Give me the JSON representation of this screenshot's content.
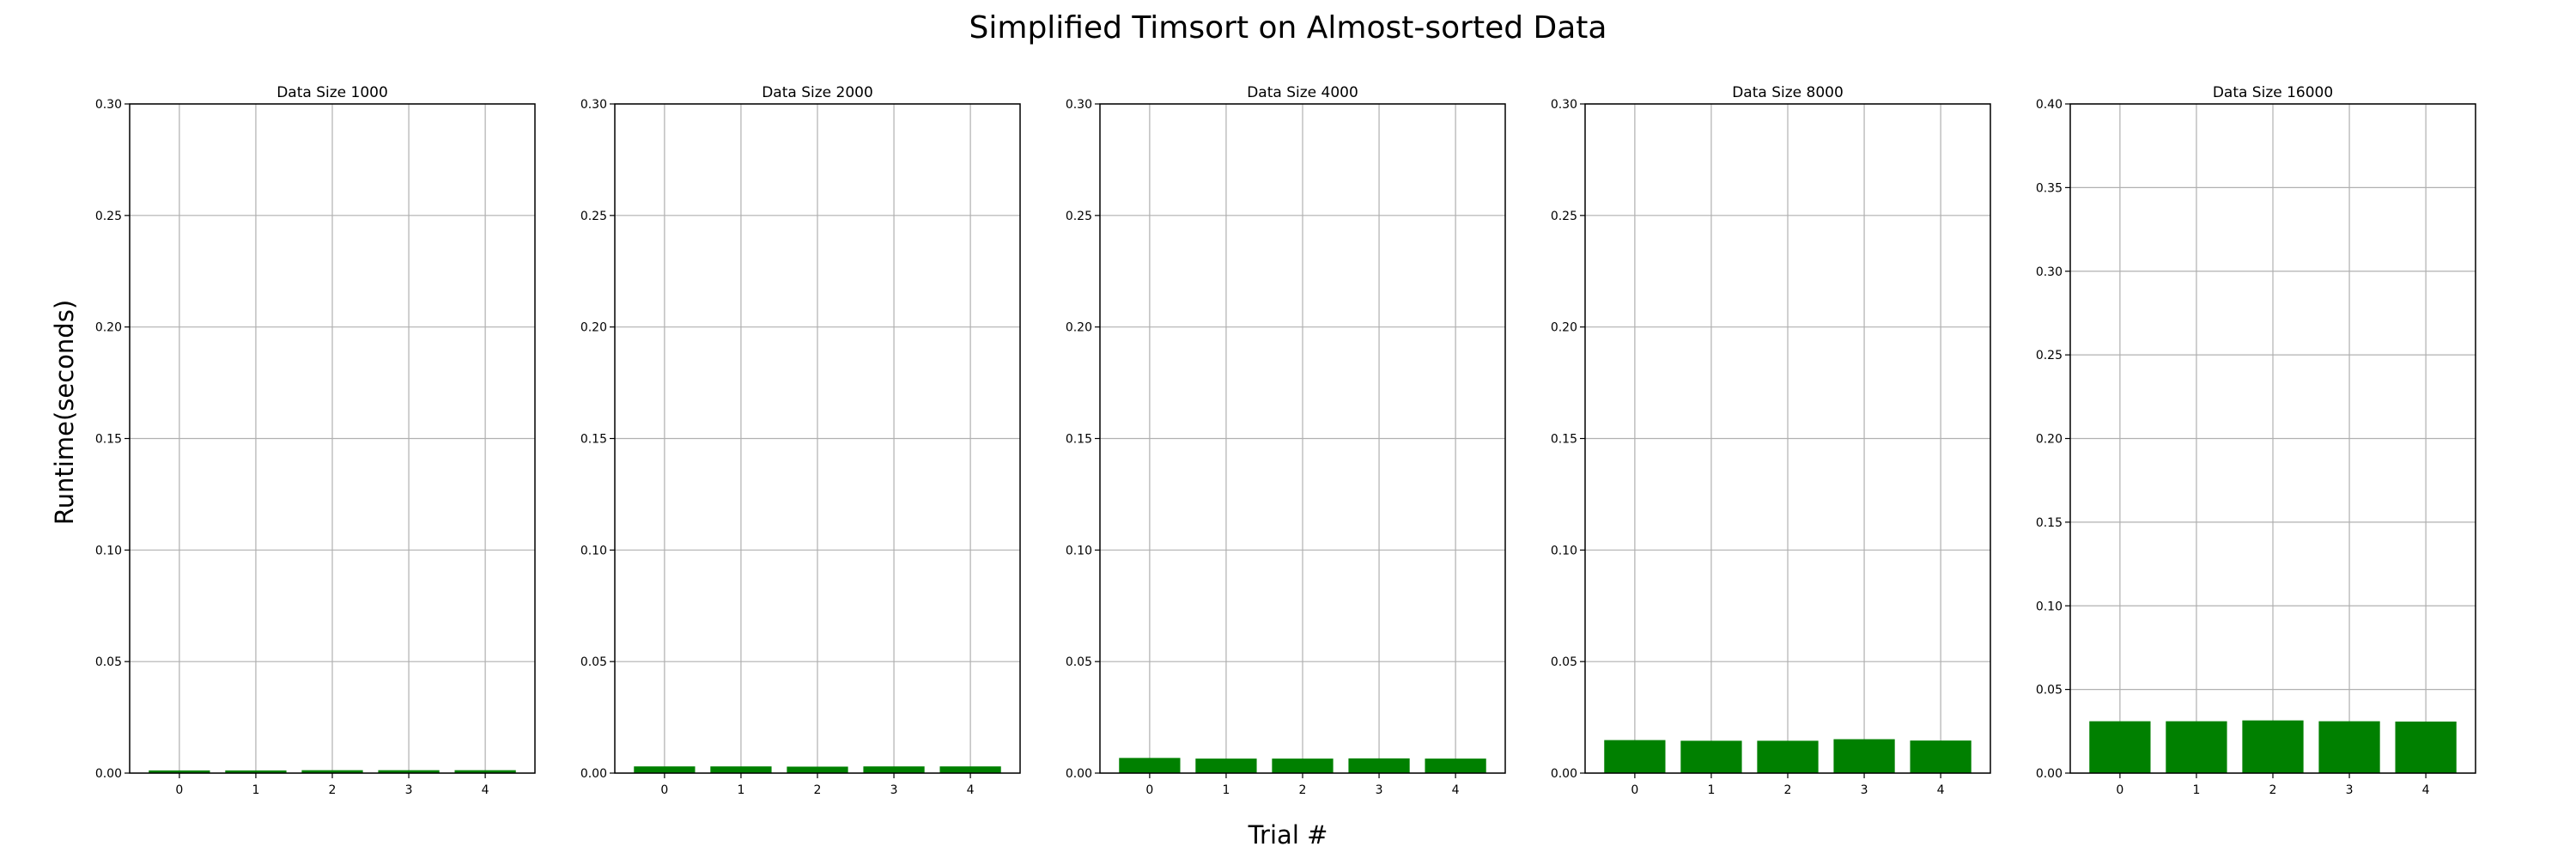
{
  "figure": {
    "title": "Simplified Timsort on Almost-sorted Data",
    "xlabel": "Trial #",
    "ylabel": "Runtime(seconds)"
  },
  "colors": {
    "bar": "#008000",
    "grid": "#b0b0b0",
    "axis": "#000000"
  },
  "chart_data": [
    {
      "type": "bar",
      "title": "Data Size 1000",
      "categories": [
        "0",
        "1",
        "2",
        "3",
        "4"
      ],
      "values": [
        0.0012,
        0.0012,
        0.0013,
        0.0013,
        0.0013
      ],
      "ylim": [
        0,
        0.3
      ],
      "yticks": [
        "0.00",
        "0.05",
        "0.10",
        "0.15",
        "0.20",
        "0.25",
        "0.30"
      ],
      "grid": true
    },
    {
      "type": "bar",
      "title": "Data Size 2000",
      "categories": [
        "0",
        "1",
        "2",
        "3",
        "4"
      ],
      "values": [
        0.003,
        0.003,
        0.0029,
        0.003,
        0.003
      ],
      "ylim": [
        0,
        0.3
      ],
      "yticks": [
        "0.00",
        "0.05",
        "0.10",
        "0.15",
        "0.20",
        "0.25",
        "0.30"
      ],
      "grid": true
    },
    {
      "type": "bar",
      "title": "Data Size 4000",
      "categories": [
        "0",
        "1",
        "2",
        "3",
        "4"
      ],
      "values": [
        0.0068,
        0.0065,
        0.0065,
        0.0066,
        0.0065
      ],
      "ylim": [
        0,
        0.3
      ],
      "yticks": [
        "0.00",
        "0.05",
        "0.10",
        "0.15",
        "0.20",
        "0.25",
        "0.30"
      ],
      "grid": true
    },
    {
      "type": "bar",
      "title": "Data Size 8000",
      "categories": [
        "0",
        "1",
        "2",
        "3",
        "4"
      ],
      "values": [
        0.0148,
        0.0145,
        0.0145,
        0.0152,
        0.0146
      ],
      "ylim": [
        0,
        0.3
      ],
      "yticks": [
        "0.00",
        "0.05",
        "0.10",
        "0.15",
        "0.20",
        "0.25",
        "0.30"
      ],
      "grid": true
    },
    {
      "type": "bar",
      "title": "Data Size 16000",
      "categories": [
        "0",
        "1",
        "2",
        "3",
        "4"
      ],
      "values": [
        0.031,
        0.031,
        0.0315,
        0.031,
        0.0308
      ],
      "ylim": [
        0,
        0.4
      ],
      "yticks": [
        "0.00",
        "0.05",
        "0.10",
        "0.15",
        "0.20",
        "0.25",
        "0.30",
        "0.35",
        "0.40"
      ],
      "grid": true
    }
  ]
}
